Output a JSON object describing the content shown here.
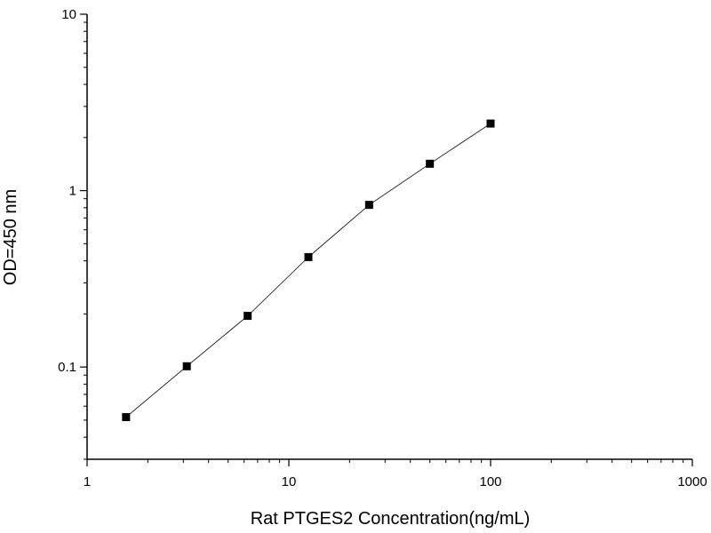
{
  "chart_data": {
    "type": "line",
    "xlabel": "Rat PTGES2 Concentration(ng/mL)",
    "ylabel": "OD=450 nm",
    "x_scale": "log",
    "y_scale": "log",
    "xlim": [
      1,
      1000
    ],
    "ylim": [
      0.03,
      10
    ],
    "x_ticks": [
      {
        "value": 1,
        "label": "1"
      },
      {
        "value": 10,
        "label": "10"
      },
      {
        "value": 100,
        "label": "100"
      },
      {
        "value": 1000,
        "label": "1000"
      }
    ],
    "y_ticks": [
      {
        "value": 0.1,
        "label": "0.1"
      },
      {
        "value": 1,
        "label": "1"
      },
      {
        "value": 10,
        "label": "10"
      }
    ],
    "grid": false,
    "marker": "square",
    "series": [
      {
        "x": [
          1.56,
          3.12,
          6.25,
          12.5,
          25,
          50,
          100
        ],
        "y": [
          0.052,
          0.101,
          0.195,
          0.42,
          0.83,
          1.42,
          2.4
        ]
      }
    ]
  }
}
